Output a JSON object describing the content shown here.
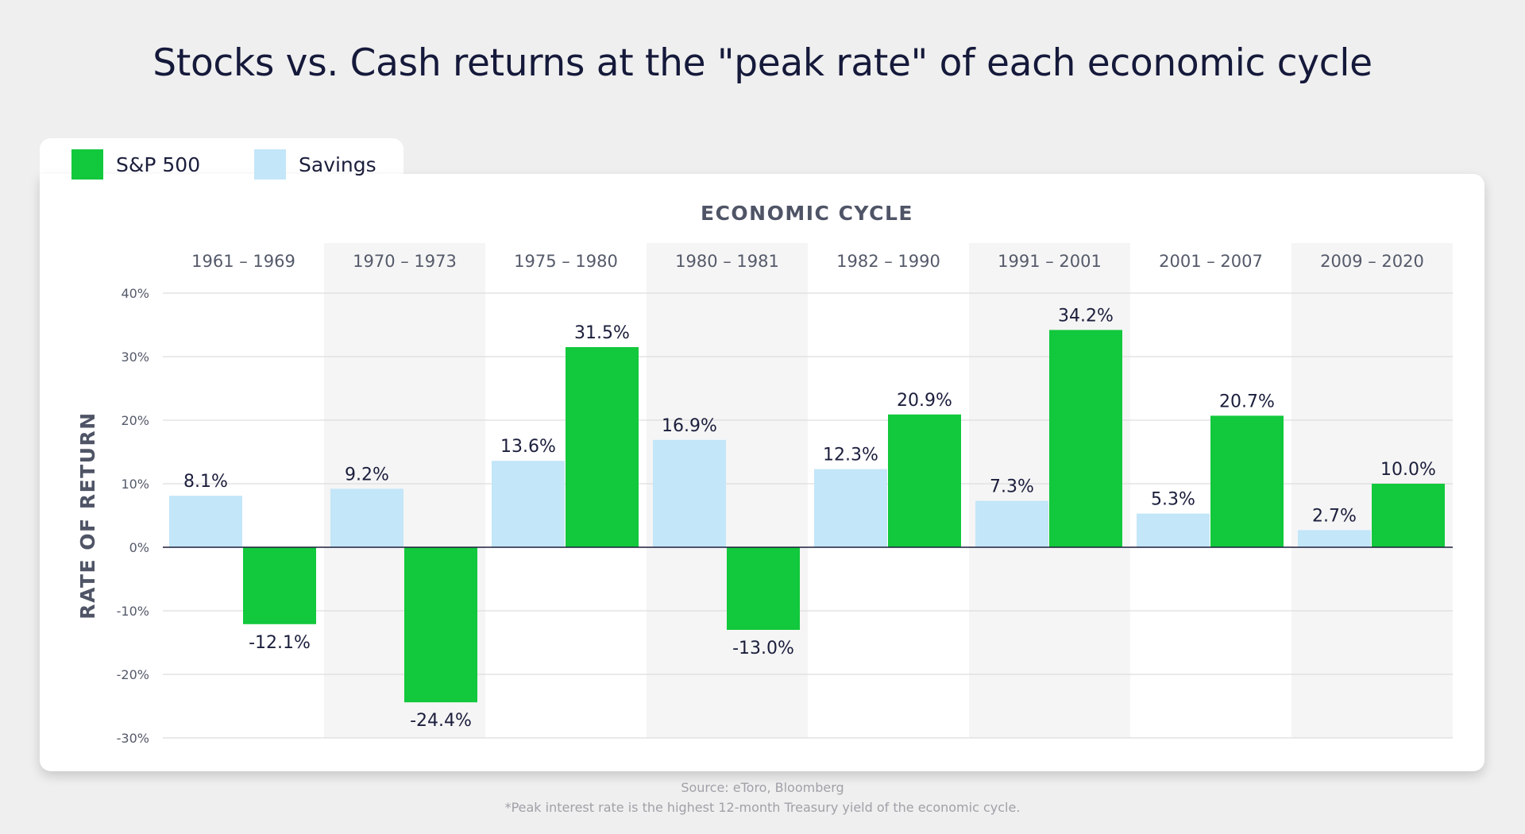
{
  "title": "Stocks vs. Cash returns at the \"peak rate\" of each economic cycle",
  "colors": {
    "sp500": "#12c83c",
    "savings": "#c3e6f9",
    "band": "#f5f5f5",
    "grid": "#d6d6d6",
    "text": "#1b1e3c",
    "axis_text": "#555a6a"
  },
  "legend": {
    "sp500_label": "S&P 500",
    "savings_label": "Savings"
  },
  "footer": {
    "source": "Source: eToro, Bloomberg",
    "note": "*Peak interest rate is the highest 12-month Treasury yield of the economic cycle."
  },
  "chart_data": {
    "type": "bar",
    "title": "Stocks vs. Cash returns at the \"peak rate\" of each economic cycle",
    "xlabel": "ECONOMIC CYCLE",
    "ylabel": "RATE OF RETURN",
    "ylim": [
      -30,
      40
    ],
    "yticks": [
      40,
      30,
      20,
      10,
      0,
      -10,
      -20,
      -30
    ],
    "ytick_labels": [
      "40%",
      "30%",
      "20%",
      "10%",
      "0%",
      "-10%",
      "-20%",
      "-30%"
    ],
    "categories": [
      "1961 – 1969",
      "1970 – 1973",
      "1975 – 1980",
      "1980 – 1981",
      "1982 – 1990",
      "1991 – 2001",
      "2001 – 2007",
      "2009 – 2020"
    ],
    "series": [
      {
        "name": "Savings",
        "values": [
          8.1,
          9.2,
          13.6,
          16.9,
          12.3,
          7.3,
          5.3,
          2.7
        ],
        "labels": [
          "8.1%",
          "9.2%",
          "13.6%",
          "16.9%",
          "12.3%",
          "7.3%",
          "5.3%",
          "2.7%"
        ]
      },
      {
        "name": "S&P 500",
        "values": [
          -12.1,
          -24.4,
          31.5,
          -13.0,
          20.9,
          34.2,
          20.7,
          10.0
        ],
        "labels": [
          "-12.1%",
          "-24.4%",
          "31.5%",
          "-13.0%",
          "20.9%",
          "34.2%",
          "20.7%",
          "10.0%"
        ]
      }
    ],
    "grid": true,
    "legend_position": "top-left",
    "alternating_column_bands": true
  }
}
